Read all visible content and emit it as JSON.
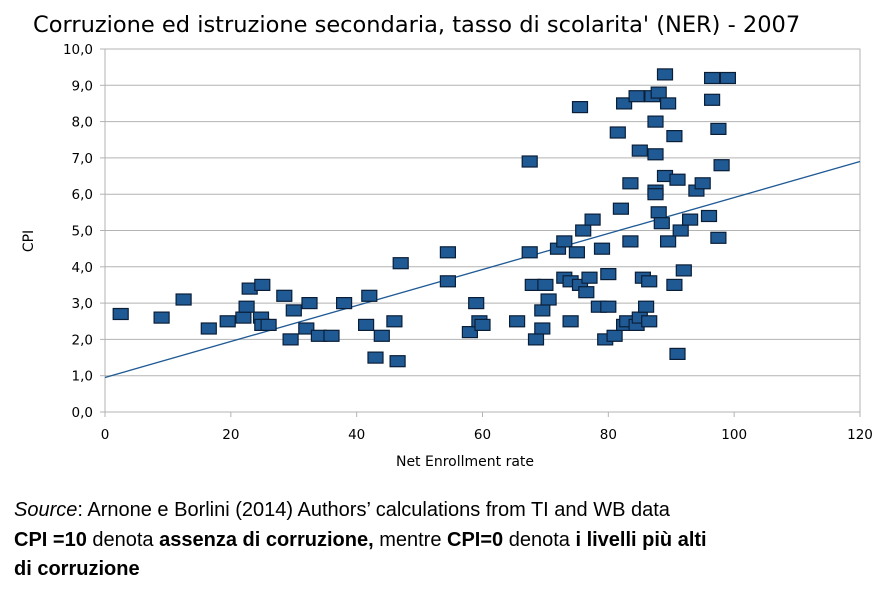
{
  "chart_data": {
    "type": "scatter",
    "title": "Corruzione ed istruzione secondaria, tasso di scolarita' (NER) - 2007",
    "xlabel": "Net Enrollment rate",
    "ylabel": "CPI",
    "xlim": [
      0,
      120
    ],
    "ylim": [
      0,
      10
    ],
    "x_ticks": [
      "0",
      "20",
      "40",
      "60",
      "80",
      "100",
      "120"
    ],
    "y_ticks": [
      "0,0",
      "1,0",
      "2,0",
      "3,0",
      "4,0",
      "5,0",
      "6,0",
      "7,0",
      "8,0",
      "9,0",
      "10,0"
    ],
    "grid": "horizontal",
    "marker_color": "#1f5a94",
    "marker_edge": "#0a1e38",
    "trendline": {
      "color": "#1f5a94",
      "x": [
        0,
        120
      ],
      "y": [
        0.95,
        6.9
      ]
    },
    "points": [
      [
        2.5,
        2.7
      ],
      [
        9,
        2.6
      ],
      [
        12.5,
        3.1
      ],
      [
        16.5,
        2.3
      ],
      [
        19.5,
        2.5
      ],
      [
        22,
        2.6
      ],
      [
        22.5,
        2.9
      ],
      [
        23,
        3.4
      ],
      [
        24.8,
        2.6
      ],
      [
        25,
        3.5
      ],
      [
        25,
        2.4
      ],
      [
        26,
        2.4
      ],
      [
        28.5,
        3.2
      ],
      [
        29.5,
        2.0
      ],
      [
        30,
        2.8
      ],
      [
        32,
        2.3
      ],
      [
        32.5,
        3.0
      ],
      [
        34,
        2.1
      ],
      [
        36,
        2.1
      ],
      [
        38,
        3.0
      ],
      [
        41.5,
        2.4
      ],
      [
        42,
        3.2
      ],
      [
        43,
        1.5
      ],
      [
        44,
        2.1
      ],
      [
        46,
        2.5
      ],
      [
        46.5,
        1.4
      ],
      [
        47,
        4.1
      ],
      [
        54.5,
        4.4
      ],
      [
        54.5,
        3.6
      ],
      [
        58,
        2.2
      ],
      [
        59,
        3.0
      ],
      [
        59.5,
        2.5
      ],
      [
        60,
        2.4
      ],
      [
        65.5,
        2.5
      ],
      [
        67.5,
        6.9
      ],
      [
        67.5,
        4.4
      ],
      [
        68,
        3.5
      ],
      [
        68.5,
        2.0
      ],
      [
        69.5,
        2.3
      ],
      [
        69.5,
        2.8
      ],
      [
        70,
        3.5
      ],
      [
        70.5,
        3.1
      ],
      [
        72,
        4.5
      ],
      [
        73,
        4.7
      ],
      [
        73,
        3.7
      ],
      [
        74,
        2.5
      ],
      [
        74,
        3.6
      ],
      [
        75,
        4.4
      ],
      [
        75.5,
        8.4
      ],
      [
        75.5,
        3.5
      ],
      [
        76,
        5.0
      ],
      [
        76.5,
        3.3
      ],
      [
        77,
        3.7
      ],
      [
        77.5,
        5.3
      ],
      [
        78.5,
        2.9
      ],
      [
        79,
        4.5
      ],
      [
        79.5,
        2.0
      ],
      [
        80,
        2.9
      ],
      [
        80,
        3.8
      ],
      [
        81,
        2.1
      ],
      [
        81.5,
        7.7
      ],
      [
        82,
        5.6
      ],
      [
        82.5,
        8.5
      ],
      [
        82.5,
        2.4
      ],
      [
        83,
        2.5
      ],
      [
        83.5,
        6.3
      ],
      [
        83.5,
        4.7
      ],
      [
        84.5,
        8.7
      ],
      [
        84.5,
        2.4
      ],
      [
        85,
        7.2
      ],
      [
        85,
        2.6
      ],
      [
        85.5,
        3.7
      ],
      [
        86,
        2.9
      ],
      [
        86.5,
        3.6
      ],
      [
        86.5,
        2.5
      ],
      [
        87,
        8.7
      ],
      [
        87.5,
        6.1
      ],
      [
        87.5,
        6.0
      ],
      [
        87.5,
        8.0
      ],
      [
        87.5,
        7.1
      ],
      [
        88,
        8.8
      ],
      [
        88,
        5.5
      ],
      [
        88.5,
        5.2
      ],
      [
        89,
        9.3
      ],
      [
        89,
        6.5
      ],
      [
        89.5,
        8.5
      ],
      [
        89.5,
        4.7
      ],
      [
        90.5,
        3.5
      ],
      [
        90.5,
        7.6
      ],
      [
        91,
        6.4
      ],
      [
        91,
        1.6
      ],
      [
        91.5,
        5.0
      ],
      [
        92,
        3.9
      ],
      [
        93,
        5.3
      ],
      [
        94,
        6.1
      ],
      [
        95,
        6.3
      ],
      [
        96,
        5.4
      ],
      [
        96.5,
        8.6
      ],
      [
        96.5,
        9.2
      ],
      [
        97.5,
        4.8
      ],
      [
        97.5,
        7.8
      ],
      [
        98,
        6.8
      ],
      [
        99,
        9.2
      ]
    ]
  },
  "caption": {
    "line1_source": "Source",
    "line1_rest": ": Arnone e Borlini (2014) Authors’ calculations from TI and WB data",
    "line2_cpi10": "CPI =10",
    "line2_denota1": " denota ",
    "line2_assenza": "assenza di corruzione,",
    "line2_mentre": " mentre ",
    "line2_cpi0": "CPI=0",
    "line2_denota2": " denota ",
    "line2_livelli": "i livelli più alti",
    "line3_corruzione": "di corruzione"
  }
}
